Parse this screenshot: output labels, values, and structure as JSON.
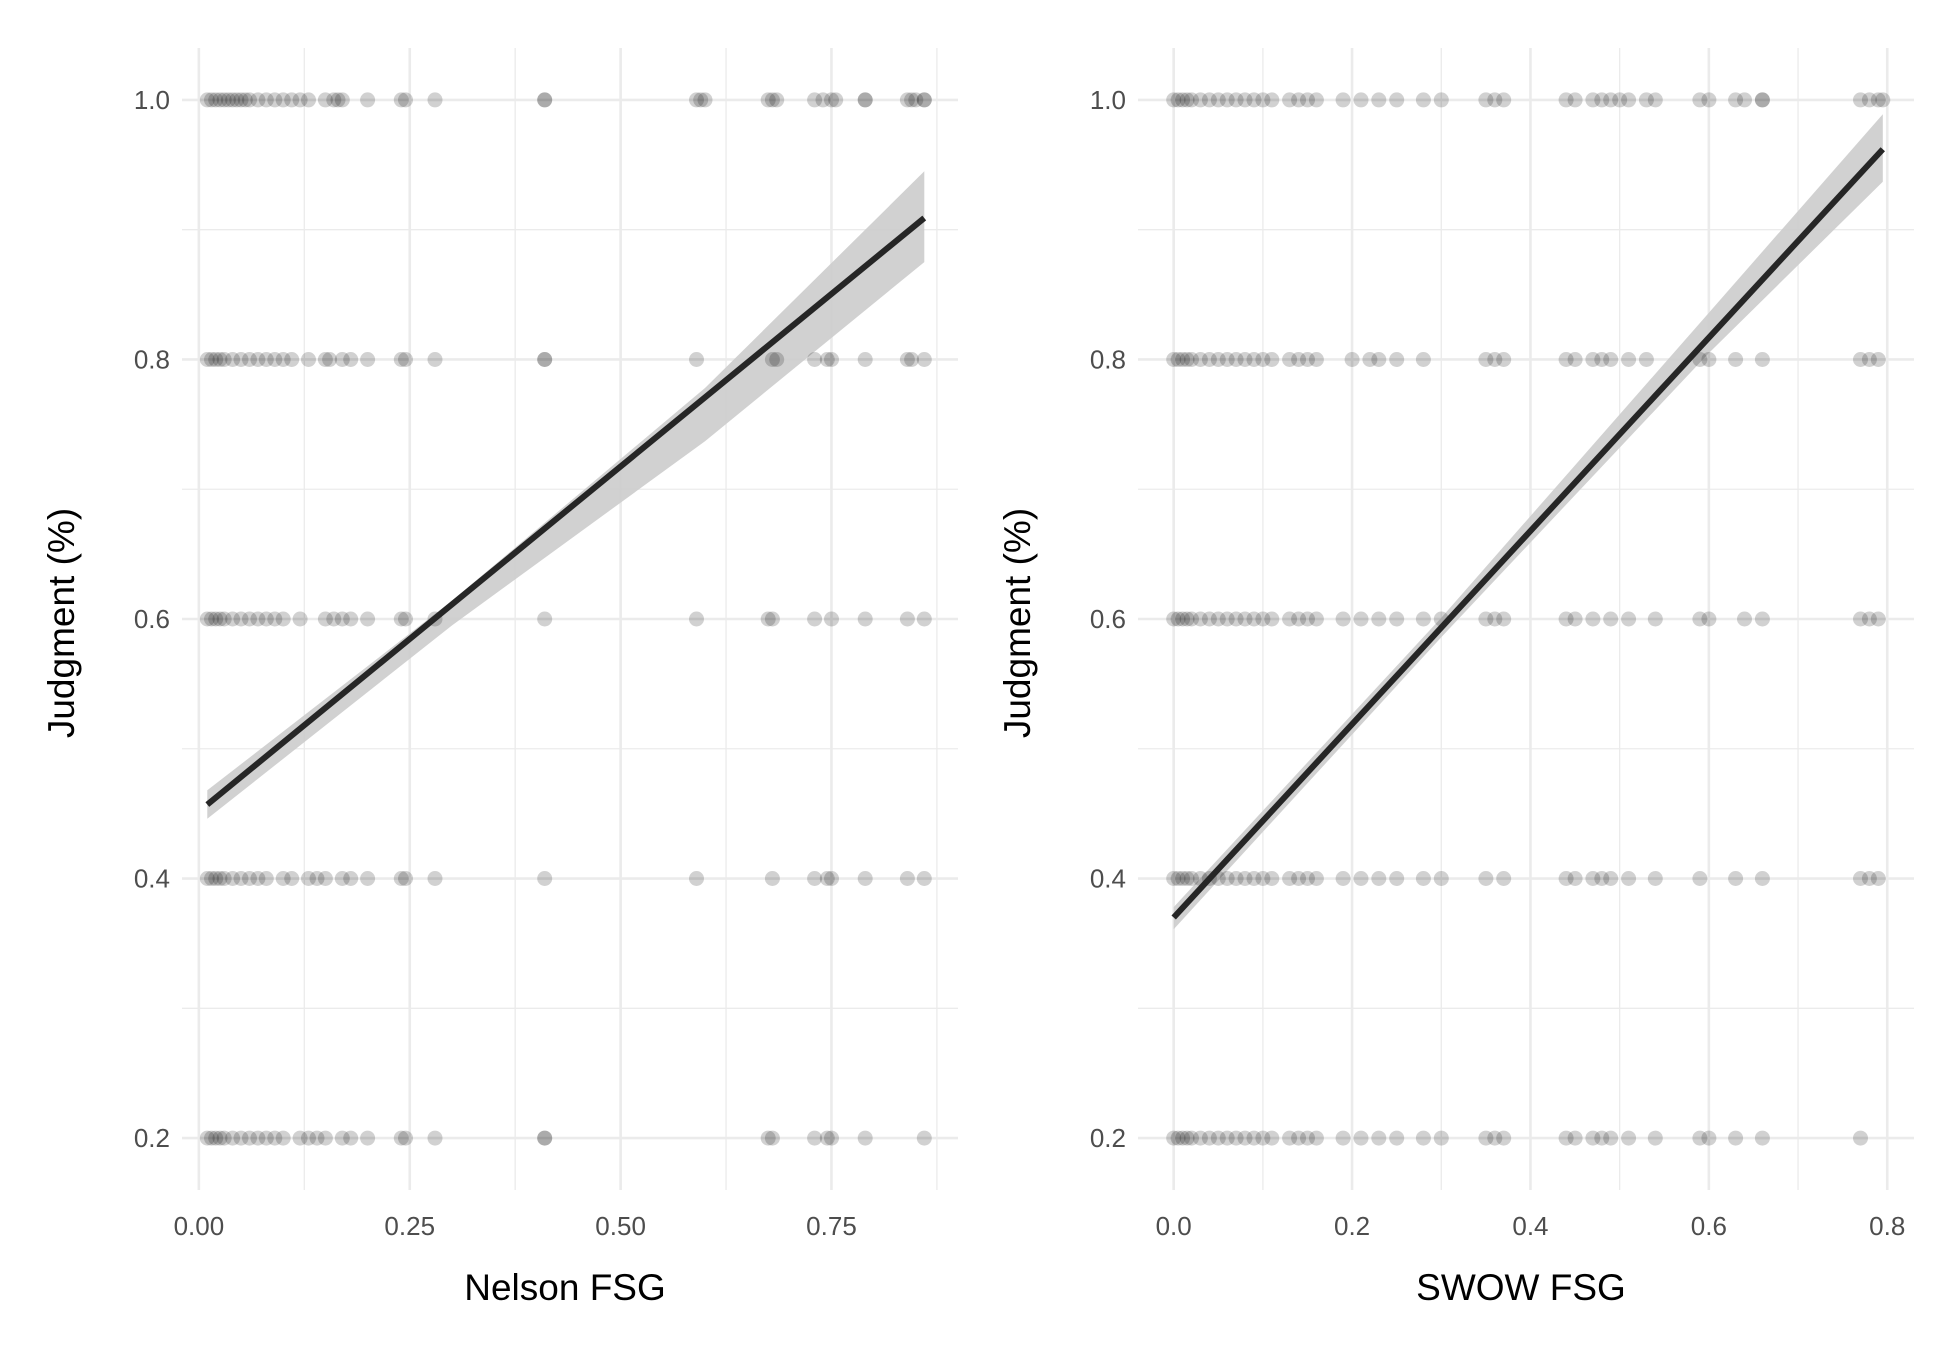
{
  "colors": {
    "grid": "#ebebeb",
    "point": "#000000",
    "fit_line": "#262626",
    "ribbon": "#cccccc",
    "tick_text": "#4d4d4d"
  },
  "chart_data": [
    {
      "type": "scatter",
      "title": "",
      "xlabel": "Nelson FSG",
      "ylabel": "Judgment (%)",
      "xlim": [
        -0.02,
        0.9
      ],
      "ylim": [
        0.16,
        1.04
      ],
      "xticks": [
        "0.00",
        "0.25",
        "0.50",
        "0.75"
      ],
      "xtick_values": [
        0.0,
        0.25,
        0.5,
        0.75
      ],
      "yticks": [
        "0.2",
        "0.4",
        "0.6",
        "0.8",
        "1.0"
      ],
      "ytick_values": [
        0.2,
        0.4,
        0.6,
        0.8,
        1.0
      ],
      "grid": true,
      "legend": "none",
      "point_opacity": 0.18,
      "levels": [
        1.0,
        0.8,
        0.6,
        0.4,
        0.2
      ],
      "x_by_level": [
        [
          0.01,
          0.015,
          0.02,
          0.025,
          0.03,
          0.035,
          0.04,
          0.045,
          0.05,
          0.055,
          0.06,
          0.07,
          0.08,
          0.09,
          0.1,
          0.11,
          0.12,
          0.13,
          0.15,
          0.16,
          0.165,
          0.17,
          0.2,
          0.24,
          0.245,
          0.28,
          0.41,
          0.41,
          0.59,
          0.595,
          0.6,
          0.675,
          0.68,
          0.685,
          0.73,
          0.74,
          0.75,
          0.755,
          0.79,
          0.79,
          0.84,
          0.845,
          0.85,
          0.86,
          0.86
        ],
        [
          0.01,
          0.015,
          0.02,
          0.025,
          0.03,
          0.04,
          0.05,
          0.06,
          0.07,
          0.08,
          0.09,
          0.1,
          0.11,
          0.13,
          0.15,
          0.155,
          0.17,
          0.18,
          0.2,
          0.24,
          0.245,
          0.28,
          0.41,
          0.41,
          0.59,
          0.68,
          0.685,
          0.73,
          0.745,
          0.75,
          0.79,
          0.84,
          0.845,
          0.86
        ],
        [
          0.01,
          0.015,
          0.02,
          0.025,
          0.03,
          0.04,
          0.05,
          0.06,
          0.07,
          0.08,
          0.09,
          0.1,
          0.12,
          0.15,
          0.16,
          0.17,
          0.18,
          0.2,
          0.24,
          0.245,
          0.28,
          0.41,
          0.59,
          0.675,
          0.68,
          0.73,
          0.75,
          0.79,
          0.84,
          0.86
        ],
        [
          0.01,
          0.015,
          0.02,
          0.025,
          0.03,
          0.04,
          0.05,
          0.06,
          0.07,
          0.08,
          0.1,
          0.11,
          0.13,
          0.14,
          0.15,
          0.17,
          0.18,
          0.2,
          0.24,
          0.245,
          0.28,
          0.41,
          0.59,
          0.68,
          0.73,
          0.745,
          0.75,
          0.79,
          0.84,
          0.86
        ],
        [
          0.01,
          0.015,
          0.02,
          0.025,
          0.03,
          0.04,
          0.05,
          0.06,
          0.07,
          0.08,
          0.09,
          0.1,
          0.12,
          0.13,
          0.14,
          0.15,
          0.17,
          0.18,
          0.2,
          0.24,
          0.245,
          0.28,
          0.41,
          0.41,
          0.675,
          0.68,
          0.73,
          0.745,
          0.75,
          0.79,
          0.86
        ]
      ],
      "fit": {
        "x": [
          0.01,
          0.86
        ],
        "y": [
          0.457,
          0.909
        ]
      },
      "ribbon": {
        "x": [
          0.01,
          0.3,
          0.6,
          0.86
        ],
        "upper": [
          0.468,
          0.614,
          0.778,
          0.945
        ],
        "lower": [
          0.446,
          0.595,
          0.737,
          0.875
        ]
      }
    },
    {
      "type": "scatter",
      "title": "",
      "xlabel": "SWOW FSG",
      "ylabel": "Judgment (%)",
      "xlim": [
        -0.04,
        0.83
      ],
      "ylim": [
        0.16,
        1.04
      ],
      "xticks": [
        "0.0",
        "0.2",
        "0.4",
        "0.6",
        "0.8"
      ],
      "xtick_values": [
        0.0,
        0.2,
        0.4,
        0.6,
        0.8
      ],
      "yticks": [
        "0.2",
        "0.4",
        "0.6",
        "0.8",
        "1.0"
      ],
      "ytick_values": [
        0.2,
        0.4,
        0.6,
        0.8,
        1.0
      ],
      "grid": true,
      "legend": "none",
      "point_opacity": 0.18,
      "levels": [
        1.0,
        0.8,
        0.6,
        0.4,
        0.2
      ],
      "x_by_level": [
        [
          0.0,
          0.005,
          0.01,
          0.015,
          0.02,
          0.03,
          0.04,
          0.05,
          0.06,
          0.07,
          0.08,
          0.09,
          0.1,
          0.11,
          0.13,
          0.14,
          0.15,
          0.16,
          0.19,
          0.21,
          0.23,
          0.25,
          0.28,
          0.3,
          0.35,
          0.36,
          0.37,
          0.44,
          0.45,
          0.47,
          0.48,
          0.49,
          0.5,
          0.51,
          0.53,
          0.54,
          0.59,
          0.6,
          0.63,
          0.64,
          0.66,
          0.66,
          0.77,
          0.78,
          0.79,
          0.795
        ],
        [
          0.0,
          0.005,
          0.01,
          0.015,
          0.02,
          0.03,
          0.04,
          0.05,
          0.06,
          0.07,
          0.08,
          0.09,
          0.1,
          0.11,
          0.13,
          0.14,
          0.15,
          0.16,
          0.2,
          0.22,
          0.23,
          0.25,
          0.28,
          0.35,
          0.36,
          0.37,
          0.44,
          0.45,
          0.47,
          0.48,
          0.49,
          0.51,
          0.53,
          0.59,
          0.6,
          0.63,
          0.66,
          0.77,
          0.78,
          0.79
        ],
        [
          0.0,
          0.005,
          0.01,
          0.015,
          0.02,
          0.03,
          0.04,
          0.05,
          0.06,
          0.07,
          0.08,
          0.09,
          0.1,
          0.11,
          0.13,
          0.14,
          0.15,
          0.16,
          0.19,
          0.21,
          0.23,
          0.25,
          0.28,
          0.3,
          0.35,
          0.36,
          0.37,
          0.44,
          0.45,
          0.47,
          0.49,
          0.51,
          0.54,
          0.59,
          0.6,
          0.64,
          0.66,
          0.77,
          0.78,
          0.79
        ],
        [
          0.0,
          0.005,
          0.01,
          0.015,
          0.02,
          0.03,
          0.04,
          0.05,
          0.06,
          0.07,
          0.08,
          0.09,
          0.1,
          0.11,
          0.13,
          0.14,
          0.15,
          0.16,
          0.19,
          0.21,
          0.23,
          0.25,
          0.28,
          0.3,
          0.35,
          0.37,
          0.44,
          0.45,
          0.47,
          0.48,
          0.49,
          0.51,
          0.54,
          0.59,
          0.63,
          0.66,
          0.77,
          0.78,
          0.79
        ],
        [
          0.0,
          0.005,
          0.01,
          0.015,
          0.02,
          0.03,
          0.04,
          0.05,
          0.06,
          0.07,
          0.08,
          0.09,
          0.1,
          0.11,
          0.13,
          0.14,
          0.15,
          0.16,
          0.19,
          0.21,
          0.23,
          0.25,
          0.28,
          0.3,
          0.35,
          0.36,
          0.37,
          0.44,
          0.45,
          0.47,
          0.48,
          0.49,
          0.51,
          0.54,
          0.59,
          0.6,
          0.63,
          0.66,
          0.77
        ]
      ],
      "fit": {
        "x": [
          0.0,
          0.795
        ],
        "y": [
          0.37,
          0.962
        ]
      },
      "ribbon": {
        "x": [
          0.0,
          0.3,
          0.6,
          0.795
        ],
        "upper": [
          0.378,
          0.601,
          0.836,
          0.989
        ],
        "lower": [
          0.361,
          0.586,
          0.805,
          0.937
        ]
      }
    }
  ]
}
